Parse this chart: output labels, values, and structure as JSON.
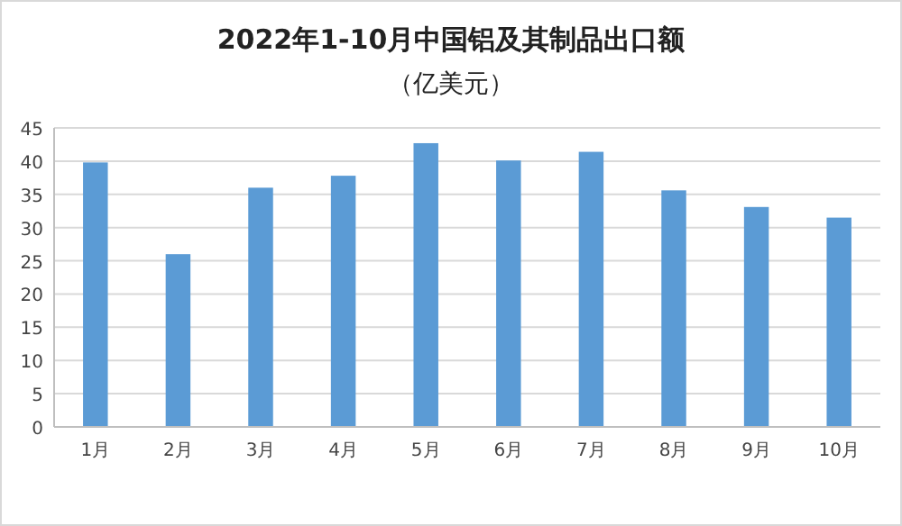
{
  "chart_data": {
    "type": "bar",
    "title": "2022年1-10月中国铝及其制品出口额",
    "subtitle": "（亿美元）",
    "categories": [
      "1月",
      "2月",
      "3月",
      "4月",
      "5月",
      "6月",
      "7月",
      "8月",
      "9月",
      "10月"
    ],
    "values": [
      39.8,
      26.0,
      36.0,
      37.8,
      42.7,
      40.1,
      41.4,
      35.6,
      33.1,
      31.5
    ],
    "color": "#5b9bd5",
    "ylim": [
      0,
      45
    ],
    "yticks": [
      0,
      5,
      10,
      15,
      20,
      25,
      30,
      35,
      40,
      45
    ],
    "grid": "y"
  }
}
